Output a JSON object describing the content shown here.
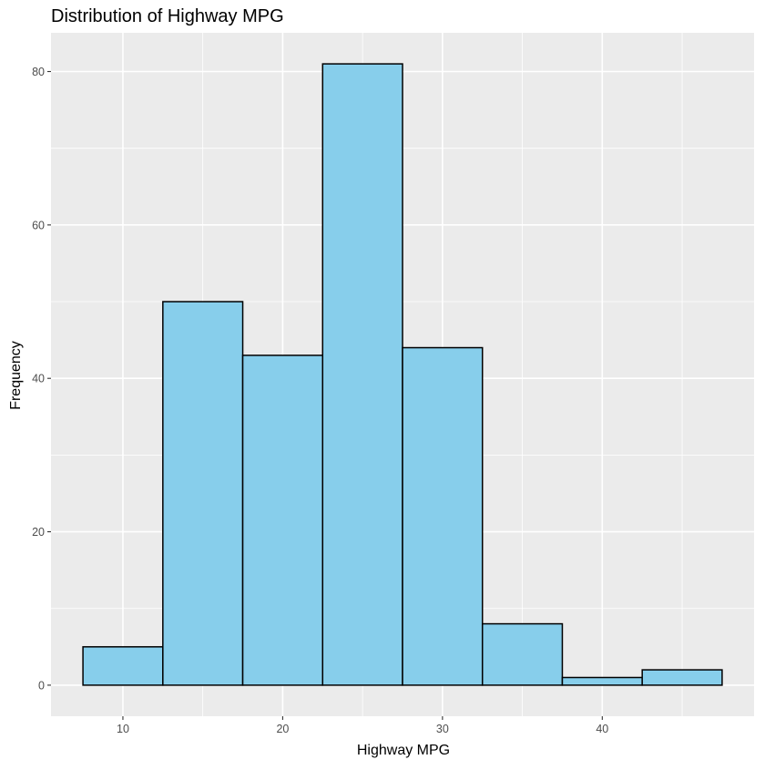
{
  "chart_data": {
    "type": "bar",
    "title": "Distribution of Highway MPG",
    "xlabel": "Highway MPG",
    "ylabel": "Frequency",
    "binwidth": 5,
    "bins": [
      {
        "start": 7.5,
        "end": 12.5,
        "count": 5
      },
      {
        "start": 12.5,
        "end": 17.5,
        "count": 50
      },
      {
        "start": 17.5,
        "end": 22.5,
        "count": 43
      },
      {
        "start": 22.5,
        "end": 27.5,
        "count": 81
      },
      {
        "start": 27.5,
        "end": 32.5,
        "count": 44
      },
      {
        "start": 32.5,
        "end": 37.5,
        "count": 8
      },
      {
        "start": 37.5,
        "end": 42.5,
        "count": 1
      },
      {
        "start": 42.5,
        "end": 47.5,
        "count": 2
      }
    ],
    "xlim": [
      5.5,
      49.5
    ],
    "ylim": [
      -4.05,
      85.05
    ],
    "xticks": [
      10,
      20,
      30,
      40
    ],
    "yticks": [
      0,
      20,
      40,
      60,
      80
    ],
    "grid": true,
    "legend": "none",
    "colors": {
      "bar_fill": "#87CEEB",
      "bar_stroke": "#000000",
      "panel_bg": "#EBEBEB",
      "grid": "#FFFFFF",
      "axis_text": "#4D4D4D",
      "tick": "#333333",
      "title_text": "#000000"
    }
  }
}
